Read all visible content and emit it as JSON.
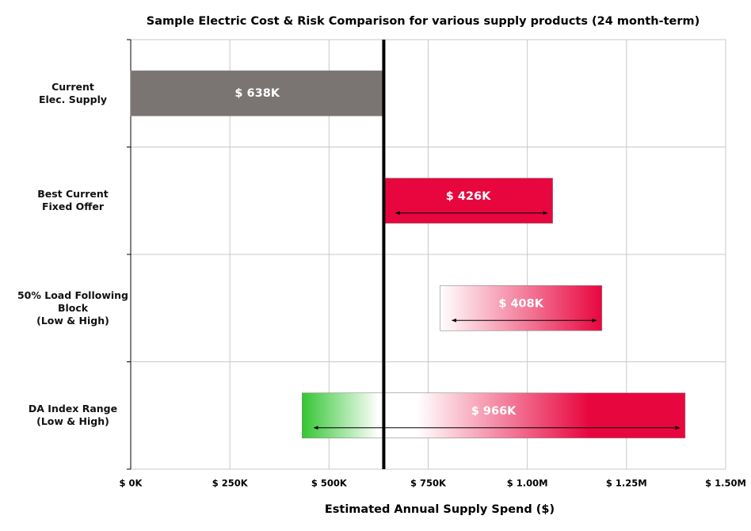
{
  "chart_data": {
    "type": "floating-bar",
    "orientation": "horizontal",
    "title": "Sample Electric Cost & Risk Comparison for various supply products (24 month-term)",
    "x_label": "Estimated Annual Supply Spend ($)",
    "categories": [
      "Current\nElec. Supply",
      "Best Current\nFixed Offer",
      "50% Load Following\nBlock\n(Low & High)",
      "DA Index Range\n(Low & High)"
    ],
    "base": [
      0,
      638000,
      780000,
      432000
    ],
    "values": [
      638000,
      426000,
      408000,
      966000
    ],
    "value_labels": [
      "$ 638K",
      "$ 426K",
      "$ 408K",
      "$ 966K"
    ],
    "bar_colors": [
      [
        "#7a7573"
      ],
      [
        "#e8063f"
      ],
      [
        "#ffffff",
        "#e8063f"
      ],
      [
        "#33c633",
        "#ffffff",
        "#ffffff",
        "#e8063f"
      ]
    ],
    "range_arrows": [
      false,
      true,
      true,
      true
    ],
    "reference_line": 638000,
    "xlim": [
      0,
      1500000
    ],
    "xticks": [
      {
        "value": 0,
        "label": "$ 0K"
      },
      {
        "value": 250000,
        "label": "$ 250K"
      },
      {
        "value": 500000,
        "label": "$ 500K"
      },
      {
        "value": 750000,
        "label": "$ 750K"
      },
      {
        "value": 1000000,
        "label": "$ 1.00M"
      },
      {
        "value": 1250000,
        "label": "$ 1.25M"
      },
      {
        "value": 1500000,
        "label": "$ 1.50M"
      }
    ],
    "grid": true
  }
}
